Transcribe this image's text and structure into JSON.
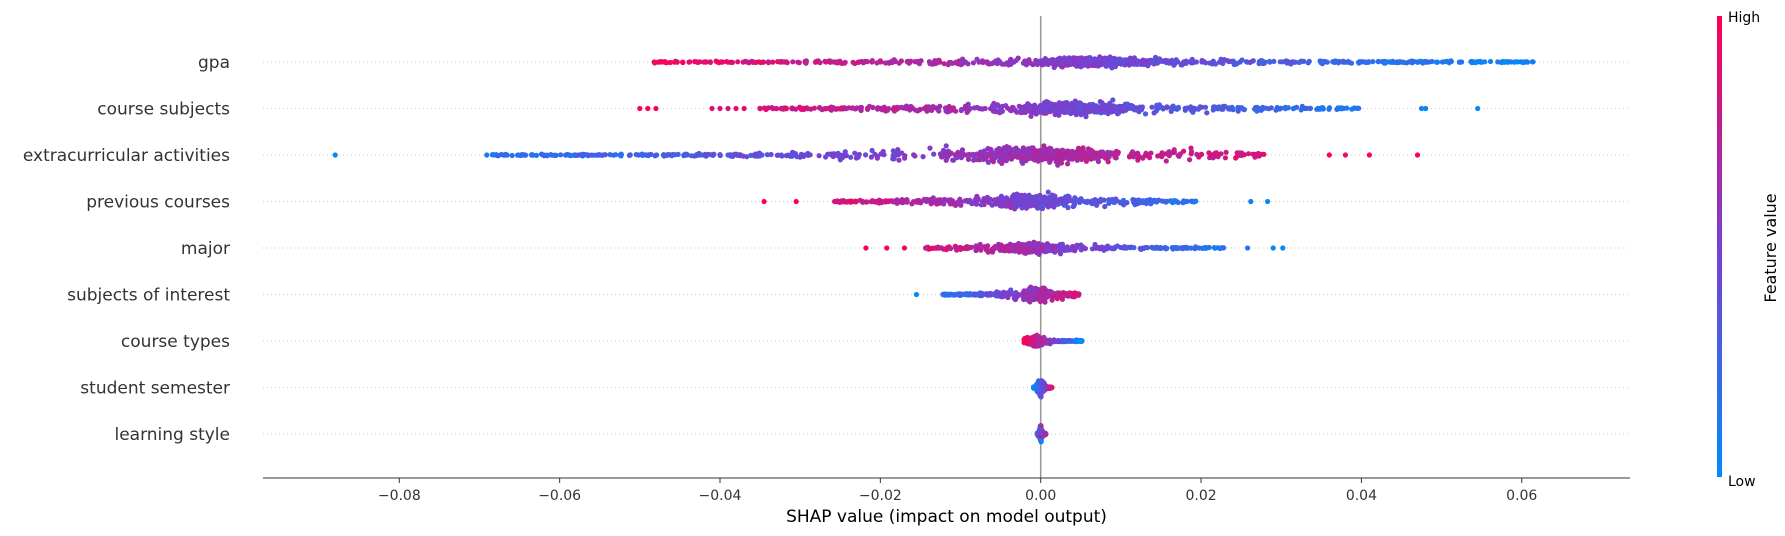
{
  "chart_data": {
    "type": "scatter",
    "subtype": "shap-beeswarm",
    "title": "",
    "xlabel": "SHAP value (impact on model output)",
    "ylabel": "",
    "xlim": [
      -0.097,
      0.0735
    ],
    "xticks": [
      -0.08,
      -0.06,
      -0.04,
      -0.02,
      0.0,
      0.02,
      0.04,
      0.06
    ],
    "xtick_labels": [
      "−0.08",
      "−0.06",
      "−0.04",
      "−0.02",
      "0.00",
      "0.02",
      "0.04",
      "0.06"
    ],
    "grid": "horizontal dotted row lines",
    "zero_line": 0.0,
    "colors": {
      "low": "#008bfb",
      "mid": "#7a3fd0",
      "high": "#ff0052",
      "axis": "#333333",
      "zero_line": "#999999",
      "row_grid": "#cccccc"
    },
    "colorbar": {
      "title": "Feature value",
      "high_label": "High",
      "low_label": "Low",
      "placement": "right"
    },
    "features": [
      {
        "name": "gpa",
        "min": -0.053,
        "max": 0.0665,
        "median": 0.007,
        "sign": "positive-low",
        "n": 900,
        "spread": 8
      },
      {
        "name": "course subjects",
        "min": -0.05,
        "max": 0.0545,
        "median": 0.004,
        "sign": "positive-low",
        "n": 700,
        "spread": 12,
        "outliers": [
          -0.05,
          -0.049,
          -0.048,
          -0.041,
          -0.04,
          -0.039,
          -0.038,
          -0.037,
          -0.035,
          -0.033,
          0.033,
          0.035,
          0.0475,
          0.048,
          0.0545
        ]
      },
      {
        "name": "extracurricular activities",
        "min": -0.088,
        "max": 0.047,
        "median": 0.0,
        "sign": "positive-high",
        "n": 800,
        "spread": 15,
        "outliers": [
          -0.088,
          -0.067,
          -0.062,
          -0.0512,
          -0.0425,
          -0.039,
          0.036,
          0.038,
          0.041,
          0.047
        ]
      },
      {
        "name": "previous courses",
        "min": -0.0345,
        "max": 0.0283,
        "median": -0.001,
        "sign": "positive-low",
        "n": 650,
        "spread": 13,
        "outliers": [
          -0.0345,
          -0.0305,
          0.0262,
          0.0283
        ]
      },
      {
        "name": "major",
        "min": -0.0218,
        "max": 0.0302,
        "median": -0.001,
        "sign": "positive-low",
        "n": 450,
        "spread": 9,
        "outliers": [
          -0.0218,
          -0.0192,
          -0.017,
          0.0258,
          0.029,
          0.0302
        ]
      },
      {
        "name": "subjects of interest",
        "min": -0.0155,
        "max": 0.0082,
        "median": -0.0005,
        "sign": "positive-high",
        "n": 400,
        "spread": 13,
        "outliers": [
          -0.0155,
          -0.0122,
          -0.0115
        ]
      },
      {
        "name": "course types",
        "min": -0.0025,
        "max": 0.0055,
        "median": -0.0005,
        "sign": "positive-low",
        "n": 300,
        "spread": 9
      },
      {
        "name": "student semester",
        "min": -0.001,
        "max": 0.0015,
        "median": 0.0,
        "sign": "positive-high",
        "n": 400,
        "spread": 14
      },
      {
        "name": "learning style",
        "min": -0.0005,
        "max": 0.0007,
        "median": 0.0,
        "sign": "mixed",
        "n": 260,
        "spread": 15
      }
    ]
  }
}
